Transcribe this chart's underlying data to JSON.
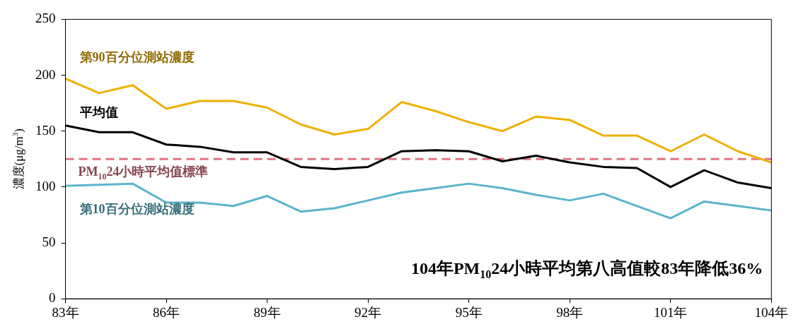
{
  "chart_data": {
    "type": "line",
    "ylabel": "濃度(μg/m$^{3}$)",
    "x": [
      83,
      84,
      85,
      86,
      87,
      88,
      89,
      90,
      91,
      92,
      93,
      94,
      95,
      96,
      97,
      98,
      99,
      100,
      101,
      102,
      103,
      104
    ],
    "xlim": [
      83,
      104
    ],
    "xticks": [
      {
        "value": 83,
        "label": "83年"
      },
      {
        "value": 86,
        "label": "86年"
      },
      {
        "value": 89,
        "label": "89年"
      },
      {
        "value": 92,
        "label": "92年"
      },
      {
        "value": 95,
        "label": "95年"
      },
      {
        "value": 98,
        "label": "98年"
      },
      {
        "value": 101,
        "label": "101年"
      },
      {
        "value": 104,
        "label": "104年"
      }
    ],
    "ylim": [
      0,
      250
    ],
    "yticks": [
      0,
      50,
      100,
      150,
      200,
      250
    ],
    "series": [
      {
        "name": "第90百分位測站濃度",
        "color": "#f0b000",
        "values": [
          197,
          184,
          191,
          170,
          177,
          177,
          171,
          156,
          147,
          152,
          176,
          168,
          158,
          150,
          163,
          160,
          146,
          146,
          132,
          147,
          132,
          122
        ]
      },
      {
        "name": "平均值",
        "color": "#000000",
        "values": [
          155,
          149,
          149,
          138,
          136,
          131,
          131,
          118,
          116,
          118,
          132,
          133,
          132,
          123,
          128,
          122,
          118,
          117,
          100,
          115,
          104,
          99
        ]
      },
      {
        "name": "第10百分位測站濃度",
        "color": "#5ab4cc",
        "values": [
          101,
          102,
          103,
          86,
          86,
          83,
          92,
          78,
          81,
          88,
          95,
          99,
          103,
          99,
          93,
          88,
          94,
          83,
          72,
          87,
          83,
          79
        ]
      }
    ],
    "ref_lines": [
      {
        "axis": "y",
        "value": 125,
        "label": "PM$_{10}$24小時平均值標準",
        "color": "#e07585",
        "line_style": "dashed"
      }
    ],
    "annotations": [
      "104年PM$_{10}$24小時平均第八高值較83年降低36%"
    ],
    "grid": false,
    "legend": false,
    "marker": "none",
    "line_style": "solid"
  }
}
